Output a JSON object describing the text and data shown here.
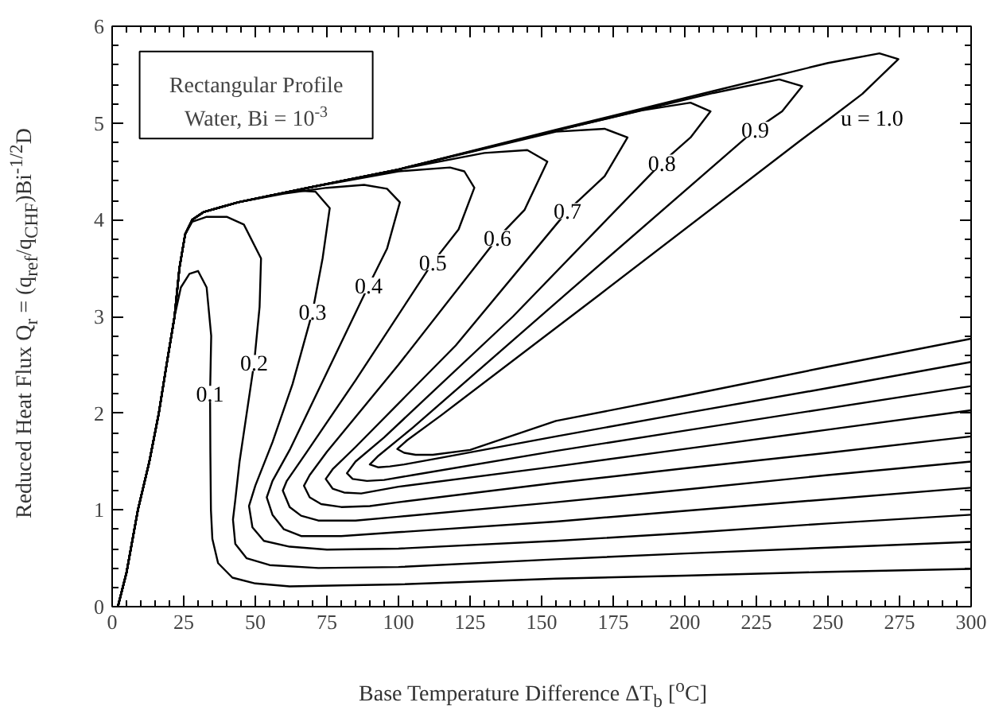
{
  "chart_data": {
    "type": "line",
    "xlabel": "Base Temperature Difference ΔT$_{b}$ [$^{o}$C]",
    "ylabel": "Reduced Heat Flux Q$_{r}$ = (q$_{ref}$/q$_{CHF}$)Bi$^{-1/2}$D",
    "annotations": [
      "Rectangular Profile",
      "Water, Bi = 10$^{-3}$"
    ],
    "xlim": [
      0,
      300
    ],
    "ylim": [
      0,
      6
    ],
    "xticks": [
      0,
      25,
      50,
      75,
      100,
      125,
      150,
      175,
      200,
      225,
      250,
      275,
      300
    ],
    "yticks": [
      0,
      1,
      2,
      3,
      4,
      5,
      6
    ],
    "grid": false,
    "legend": false,
    "series": [
      {
        "name": "0.1",
        "color": "#000000",
        "x": [
          2,
          5,
          9,
          13,
          16.3,
          19,
          21.8,
          24,
          27,
          30,
          33,
          34.6,
          34.4,
          34.2,
          34.3,
          34.5,
          35,
          37,
          42,
          50,
          62,
          80,
          100,
          155,
          200,
          250,
          300
        ],
        "values": [
          0,
          0.35,
          1.0,
          1.5,
          2.0,
          2.5,
          3.0,
          3.3,
          3.44,
          3.47,
          3.3,
          2.8,
          2.5,
          2.2,
          1.6,
          1.0,
          0.7,
          0.45,
          0.3,
          0.24,
          0.21,
          0.22,
          0.23,
          0.29,
          0.32,
          0.36,
          0.39
        ]
      },
      {
        "name": "0.2",
        "color": "#000000",
        "x": [
          2,
          5,
          9,
          13,
          16.3,
          19,
          21.8,
          23.5,
          25.5,
          28,
          33,
          40,
          46,
          52,
          51.5,
          49.6,
          47,
          44.5,
          43,
          42.2,
          43,
          47,
          55,
          72,
          100,
          155,
          200,
          250,
          300
        ],
        "values": [
          0,
          0.35,
          1.0,
          1.5,
          2.0,
          2.5,
          3.0,
          3.5,
          3.85,
          3.98,
          4.03,
          4.03,
          3.95,
          3.6,
          3.1,
          2.52,
          2.0,
          1.5,
          1.1,
          0.9,
          0.65,
          0.5,
          0.43,
          0.4,
          0.41,
          0.49,
          0.55,
          0.61,
          0.67
        ]
      },
      {
        "name": "0.3",
        "color": "#000000",
        "x": [
          2,
          5,
          9,
          13,
          16.3,
          19,
          21.8,
          23.5,
          25.5,
          28,
          32,
          38,
          44,
          55,
          65,
          71,
          76,
          73.5,
          70,
          63,
          56,
          50,
          47.8,
          49,
          53,
          62,
          75,
          100,
          155,
          200,
          250,
          300
        ],
        "values": [
          0,
          0.35,
          1.0,
          1.5,
          2.0,
          2.5,
          3.0,
          3.5,
          3.85,
          4.0,
          4.08,
          4.13,
          4.18,
          4.25,
          4.3,
          4.29,
          4.12,
          3.6,
          3.05,
          2.3,
          1.7,
          1.25,
          1.04,
          0.82,
          0.68,
          0.62,
          0.59,
          0.6,
          0.68,
          0.76,
          0.86,
          0.95
        ]
      },
      {
        "name": "0.4",
        "color": "#000000",
        "x": [
          2,
          5,
          9,
          13,
          16.3,
          19,
          21.8,
          23.5,
          25.5,
          28,
          32,
          38,
          44,
          60,
          75,
          88,
          96,
          100.5,
          96,
          89.6,
          75,
          62,
          56,
          54,
          56,
          60,
          66,
          80,
          100,
          155,
          200,
          250,
          300
        ],
        "values": [
          0,
          0.35,
          1.0,
          1.5,
          2.0,
          2.5,
          3.0,
          3.5,
          3.85,
          4.0,
          4.08,
          4.13,
          4.18,
          4.27,
          4.33,
          4.36,
          4.32,
          4.18,
          3.7,
          3.32,
          2.42,
          1.62,
          1.3,
          1.13,
          0.95,
          0.8,
          0.73,
          0.73,
          0.77,
          0.88,
          0.99,
          1.11,
          1.23
        ]
      },
      {
        "name": "0.5",
        "color": "#000000",
        "x": [
          2,
          5,
          9,
          13,
          16.3,
          19,
          21.8,
          23.5,
          25.5,
          28,
          32,
          38,
          44,
          70,
          100,
          118,
          123,
          126.5,
          121,
          112,
          85,
          68,
          61,
          59.6,
          62,
          66,
          72,
          85,
          100,
          155,
          200,
          250,
          300
        ],
        "values": [
          0,
          0.35,
          1.0,
          1.5,
          2.0,
          2.5,
          3.0,
          3.5,
          3.85,
          4.0,
          4.08,
          4.13,
          4.18,
          4.34,
          4.5,
          4.54,
          4.5,
          4.33,
          3.9,
          3.56,
          2.34,
          1.6,
          1.3,
          1.2,
          1.03,
          0.94,
          0.89,
          0.89,
          0.93,
          1.08,
          1.21,
          1.36,
          1.5
        ]
      },
      {
        "name": "0.6",
        "color": "#000000",
        "x": [
          2,
          5,
          9,
          13,
          16.3,
          19,
          21.8,
          23.5,
          25.5,
          28,
          32,
          38,
          44,
          70,
          100,
          130,
          145,
          152,
          144,
          134.6,
          100,
          75,
          69,
          67,
          69,
          73,
          80,
          90,
          100,
          155,
          200,
          250,
          300
        ],
        "values": [
          0,
          0.35,
          1.0,
          1.5,
          2.0,
          2.5,
          3.0,
          3.5,
          3.85,
          4.0,
          4.08,
          4.13,
          4.18,
          4.34,
          4.52,
          4.69,
          4.72,
          4.6,
          4.1,
          3.81,
          2.5,
          1.6,
          1.36,
          1.25,
          1.13,
          1.06,
          1.03,
          1.04,
          1.08,
          1.28,
          1.43,
          1.59,
          1.76
        ]
      },
      {
        "name": "0.7",
        "color": "#000000",
        "x": [
          2,
          5,
          9,
          13,
          16.3,
          19,
          21.8,
          23.5,
          25.5,
          28,
          32,
          38,
          44,
          70,
          100,
          155,
          172,
          180,
          172,
          159,
          120,
          85,
          77,
          74.6,
          77,
          81,
          87,
          100,
          155,
          200,
          250,
          300
        ],
        "values": [
          0,
          0.35,
          1.0,
          1.5,
          2.0,
          2.5,
          3.0,
          3.5,
          3.85,
          4.0,
          4.08,
          4.13,
          4.18,
          4.34,
          4.52,
          4.91,
          4.94,
          4.85,
          4.45,
          4.09,
          2.7,
          1.65,
          1.42,
          1.32,
          1.22,
          1.18,
          1.17,
          1.24,
          1.45,
          1.63,
          1.83,
          2.03
        ]
      },
      {
        "name": "0.8",
        "color": "#000000",
        "x": [
          2,
          5,
          9,
          13,
          16.3,
          19,
          21.8,
          23.5,
          25.5,
          28,
          32,
          38,
          44,
          70,
          100,
          155,
          185,
          202,
          209,
          202,
          192,
          140,
          95,
          85,
          82,
          84,
          89,
          95,
          105,
          155,
          200,
          250,
          300
        ],
        "values": [
          0,
          0.35,
          1.0,
          1.5,
          2.0,
          2.5,
          3.0,
          3.5,
          3.85,
          4.0,
          4.08,
          4.13,
          4.18,
          4.34,
          4.52,
          4.92,
          5.13,
          5.21,
          5.12,
          4.85,
          4.59,
          3.0,
          1.75,
          1.5,
          1.38,
          1.32,
          1.3,
          1.31,
          1.36,
          1.61,
          1.82,
          2.05,
          2.28
        ]
      },
      {
        "name": "0.9",
        "color": "#000000",
        "x": [
          2,
          5,
          9,
          13,
          16.3,
          19,
          21.8,
          23.5,
          25.5,
          28,
          32,
          38,
          44,
          70,
          100,
          155,
          210,
          233,
          241,
          234,
          224.6,
          160,
          105,
          93,
          90,
          93,
          97,
          102,
          115,
          155,
          200,
          250,
          300
        ],
        "values": [
          0,
          0.35,
          1.0,
          1.5,
          2.0,
          2.5,
          3.0,
          3.5,
          3.85,
          4.0,
          4.08,
          4.13,
          4.18,
          4.34,
          4.52,
          4.92,
          5.31,
          5.45,
          5.38,
          5.12,
          4.93,
          3.27,
          1.85,
          1.56,
          1.47,
          1.44,
          1.45,
          1.47,
          1.54,
          1.76,
          2.0,
          2.26,
          2.53
        ]
      },
      {
        "name": "u = 1.0",
        "color": "#000000",
        "x": [
          2,
          5,
          9,
          13,
          16.3,
          19,
          21.8,
          23.5,
          25.5,
          28,
          32,
          38,
          44,
          70,
          100,
          155,
          210,
          250,
          268,
          274.6,
          262,
          250,
          240,
          170,
          115,
          103,
          99.6,
          102,
          106,
          112,
          125,
          155,
          200,
          250,
          300
        ],
        "values": [
          0,
          0.35,
          1.0,
          1.5,
          2.0,
          2.5,
          3.0,
          3.5,
          3.85,
          4.0,
          4.08,
          4.13,
          4.18,
          4.34,
          4.52,
          4.93,
          5.33,
          5.62,
          5.72,
          5.66,
          5.3,
          5.03,
          4.81,
          3.22,
          1.98,
          1.72,
          1.63,
          1.59,
          1.57,
          1.57,
          1.62,
          1.92,
          2.18,
          2.48,
          2.77
        ]
      }
    ]
  }
}
